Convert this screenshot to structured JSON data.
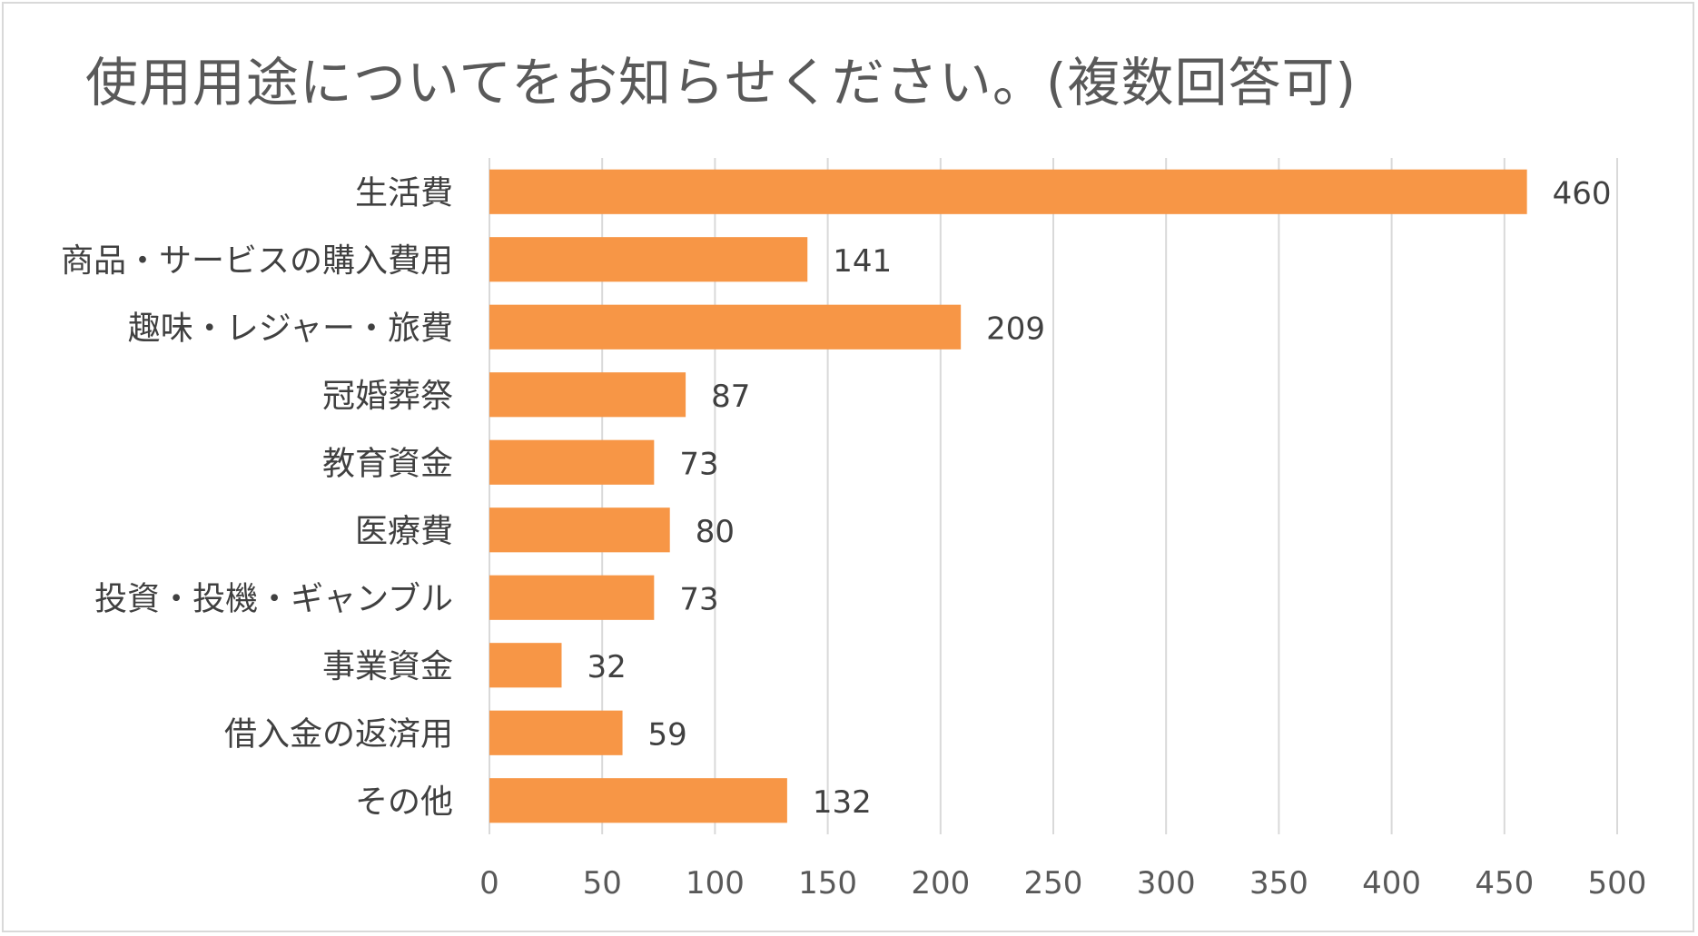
{
  "chart_data": {
    "type": "bar",
    "orientation": "horizontal",
    "title": "使用用途についてをお知らせください。(複数回答可)",
    "categories": [
      "生活費",
      "商品・サービスの購入費用",
      "趣味・レジャー・旅費",
      "冠婚葬祭",
      "教育資金",
      "医療費",
      "投資・投機・ギャンブル",
      "事業資金",
      "借入金の返済用",
      "その他"
    ],
    "values": [
      460,
      141,
      209,
      87,
      73,
      80,
      73,
      32,
      59,
      132
    ],
    "xlim": [
      0,
      500
    ],
    "xticks": [
      0,
      50,
      100,
      150,
      200,
      250,
      300,
      350,
      400,
      450,
      500
    ],
    "grid": "vertical",
    "bar_color": "#F79646",
    "data_labels": true,
    "legend": "none"
  }
}
